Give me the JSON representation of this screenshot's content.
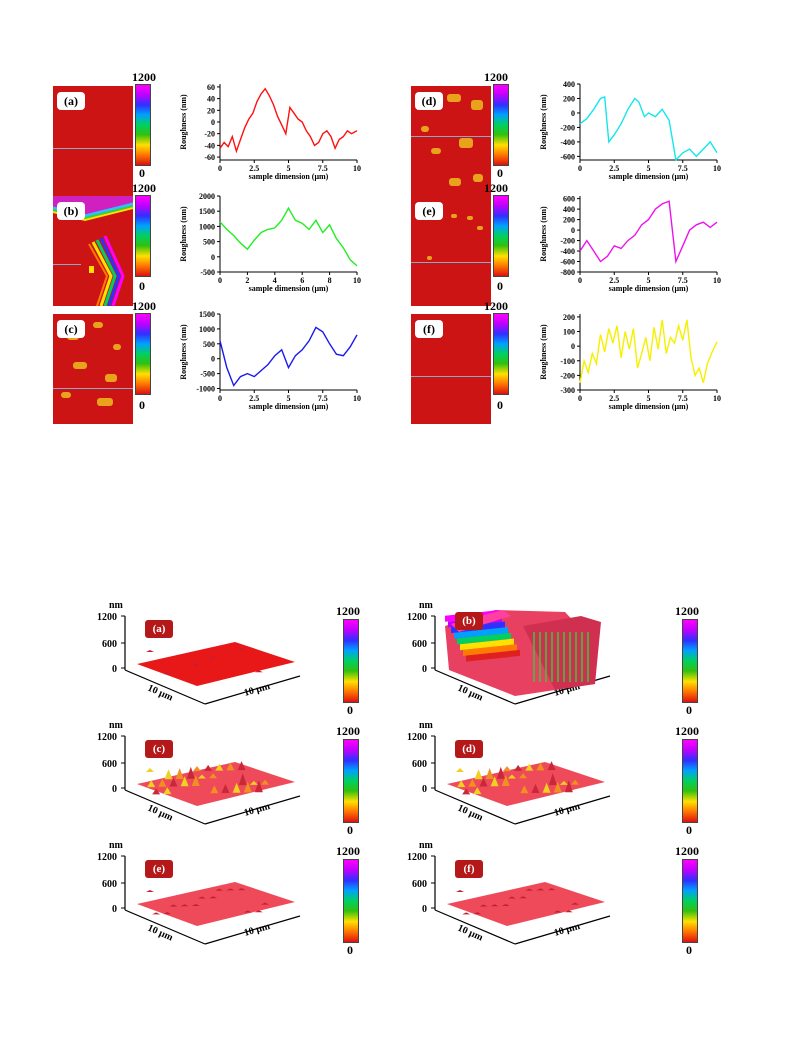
{
  "colorbar": {
    "max": "1200",
    "min": "0"
  },
  "panels_2d": [
    {
      "label": "(a)"
    },
    {
      "label": "(b)"
    },
    {
      "label": "(c)"
    },
    {
      "label": "(d)"
    },
    {
      "label": "(e)"
    },
    {
      "label": "(f)"
    }
  ],
  "chart_data": [
    {
      "type": "line",
      "panel": "(a)",
      "color": "#ff1010",
      "xlabel": "sample dimension (μm)",
      "ylabel": "Roughness (nm)",
      "xticks": [
        "0",
        "2.5",
        "5",
        "7.5",
        "10"
      ],
      "xlim": [
        0,
        10
      ],
      "yticks": [
        "60",
        "40",
        "20",
        "0",
        "-20",
        "-40",
        "-60"
      ],
      "ylim": [
        -65,
        65
      ],
      "x": [
        0,
        0.3,
        0.6,
        0.9,
        1.2,
        1.5,
        1.8,
        2.1,
        2.4,
        2.7,
        3.0,
        3.3,
        3.6,
        3.9,
        4.2,
        4.5,
        4.8,
        5.1,
        5.4,
        5.7,
        6.0,
        6.3,
        6.6,
        6.9,
        7.2,
        7.5,
        7.8,
        8.1,
        8.4,
        8.7,
        9.0,
        9.3,
        9.6,
        10
      ],
      "y": [
        -45,
        -35,
        -42,
        -25,
        -50,
        -30,
        -10,
        5,
        15,
        35,
        48,
        57,
        45,
        30,
        10,
        -5,
        -20,
        25,
        15,
        5,
        0,
        -15,
        -25,
        -40,
        -35,
        -20,
        -15,
        -25,
        -45,
        -30,
        -25,
        -15,
        -20,
        -15
      ]
    },
    {
      "type": "line",
      "panel": "(b)",
      "color": "#22ee22",
      "xlabel": "sample dimension (μm)",
      "ylabel": "Roughness (nm)",
      "xticks": [
        "0",
        "2",
        "4",
        "6",
        "8",
        "10"
      ],
      "xlim": [
        0,
        10
      ],
      "yticks": [
        "2000",
        "1500",
        "1000",
        "500",
        "0",
        "-500"
      ],
      "ylim": [
        -500,
        2000
      ],
      "x": [
        0,
        0.5,
        1,
        1.5,
        2,
        2.5,
        3,
        3.5,
        4,
        4.5,
        5,
        5.5,
        6,
        6.5,
        7,
        7.5,
        8,
        8.5,
        9,
        9.5,
        10
      ],
      "y": [
        1150,
        900,
        700,
        450,
        250,
        550,
        800,
        900,
        950,
        1200,
        1600,
        1200,
        1100,
        900,
        1200,
        800,
        1050,
        600,
        300,
        -100,
        -300
      ]
    },
    {
      "type": "line",
      "panel": "(c)",
      "color": "#1a1aee",
      "xlabel": "sample dimension (μm)",
      "ylabel": "Roughness (nm)",
      "xticks": [
        "0",
        "2.5",
        "5",
        "7.5",
        "10"
      ],
      "xlim": [
        0,
        10
      ],
      "yticks": [
        "1500",
        "1000",
        "500",
        "0",
        "-500",
        "-1000"
      ],
      "ylim": [
        -1050,
        1500
      ],
      "x": [
        0,
        0.5,
        1,
        1.5,
        2,
        2.5,
        3,
        3.5,
        4,
        4.5,
        5,
        5.5,
        6,
        6.5,
        7,
        7.5,
        8,
        8.5,
        9,
        9.5,
        10
      ],
      "y": [
        600,
        -300,
        -900,
        -600,
        -500,
        -600,
        -400,
        -200,
        100,
        300,
        -300,
        100,
        300,
        600,
        1050,
        900,
        500,
        150,
        100,
        400,
        800
      ]
    },
    {
      "type": "line",
      "panel": "(d)",
      "color": "#16e6ec",
      "xlabel": "sample dimension (μm)",
      "ylabel": "Roughness (nm)",
      "xticks": [
        "0",
        "2.5",
        "5",
        "7.5",
        "10"
      ],
      "xlim": [
        0,
        10
      ],
      "yticks": [
        "400",
        "200",
        "0",
        "-200",
        "-400",
        "-600"
      ],
      "ylim": [
        -650,
        400
      ],
      "x": [
        0,
        0.5,
        1,
        1.5,
        1.8,
        2.1,
        2.5,
        3,
        3.5,
        4,
        4.3,
        4.7,
        5,
        5.5,
        6,
        6.5,
        7,
        7.5,
        8,
        8.5,
        9,
        9.5,
        10
      ],
      "y": [
        -150,
        -80,
        50,
        200,
        220,
        -400,
        -300,
        -150,
        50,
        200,
        150,
        -50,
        0,
        -50,
        50,
        -100,
        -650,
        -550,
        -500,
        -600,
        -500,
        -400,
        -550
      ]
    },
    {
      "type": "line",
      "panel": "(e)",
      "color": "#ee11ee",
      "xlabel": "sample dimension (μm)",
      "ylabel": "Roughness (nm)",
      "xticks": [
        "0",
        "2.5",
        "5",
        "7.5",
        "10"
      ],
      "xlim": [
        0,
        10
      ],
      "yticks": [
        "600",
        "400",
        "200",
        "0",
        "-200",
        "-400",
        "-600",
        "-800"
      ],
      "ylim": [
        -800,
        650
      ],
      "x": [
        0,
        0.5,
        1,
        1.5,
        2,
        2.5,
        3,
        3.5,
        4,
        4.5,
        5,
        5.5,
        6,
        6.5,
        7,
        7.5,
        8,
        8.5,
        9,
        9.5,
        10
      ],
      "y": [
        -400,
        -200,
        -400,
        -600,
        -500,
        -300,
        -350,
        -200,
        -100,
        100,
        200,
        400,
        500,
        550,
        -600,
        -300,
        0,
        100,
        150,
        50,
        150
      ]
    },
    {
      "type": "line",
      "panel": "(f)",
      "color": "#f6f000",
      "xlabel": "sample dimension (μm)",
      "ylabel": "Roughness (nm)",
      "xticks": [
        "0",
        "2.5",
        "5",
        "7.5",
        "10"
      ],
      "xlim": [
        0,
        10
      ],
      "yticks": [
        "200",
        "100",
        "0",
        "-100",
        "-200",
        "-300"
      ],
      "ylim": [
        -300,
        220
      ],
      "x": [
        0,
        0.3,
        0.6,
        0.9,
        1.2,
        1.5,
        1.8,
        2.1,
        2.4,
        2.7,
        3.0,
        3.3,
        3.6,
        3.9,
        4.2,
        4.5,
        4.8,
        5.1,
        5.4,
        5.7,
        6.0,
        6.3,
        6.6,
        6.9,
        7.2,
        7.5,
        7.8,
        8.1,
        8.4,
        8.7,
        9.0,
        9.3,
        9.6,
        10
      ],
      "y": [
        -250,
        -100,
        -180,
        -50,
        -120,
        80,
        -40,
        120,
        20,
        140,
        -80,
        100,
        -20,
        120,
        -150,
        -50,
        60,
        -100,
        130,
        -20,
        180,
        -50,
        60,
        20,
        140,
        40,
        180,
        -80,
        -200,
        -150,
        -250,
        -120,
        -50,
        30
      ]
    }
  ],
  "views_3d": [
    {
      "label": "(a)",
      "axis_unit": "nm",
      "zticks": [
        "1200",
        "600",
        "0"
      ],
      "xlabel": "10 μm",
      "ylabel": "10 μm"
    },
    {
      "label": "(b)",
      "axis_unit": "nm",
      "zticks": [
        "1200",
        "600",
        "0"
      ],
      "xlabel": "10 μm",
      "ylabel": "10 μm"
    },
    {
      "label": "(c)",
      "axis_unit": "nm",
      "zticks": [
        "1200",
        "600",
        "0"
      ],
      "xlabel": "10 μm",
      "ylabel": "10 μm"
    },
    {
      "label": "(d)",
      "axis_unit": "nm",
      "zticks": [
        "1200",
        "600",
        "0"
      ],
      "xlabel": "10 μm",
      "ylabel": "10 μm"
    },
    {
      "label": "(e)",
      "axis_unit": "nm",
      "zticks": [
        "1200",
        "600",
        "0"
      ],
      "xlabel": "10 μm",
      "ylabel": "10 μm"
    },
    {
      "label": "(f)",
      "axis_unit": "nm",
      "zticks": [
        "1200",
        "600",
        "0"
      ],
      "xlabel": "10 μm",
      "ylabel": "10 μm"
    }
  ],
  "colors": {
    "afm_base": "#cc1414",
    "grain": "#e8a21c",
    "surface_3d": "#ee4050"
  }
}
